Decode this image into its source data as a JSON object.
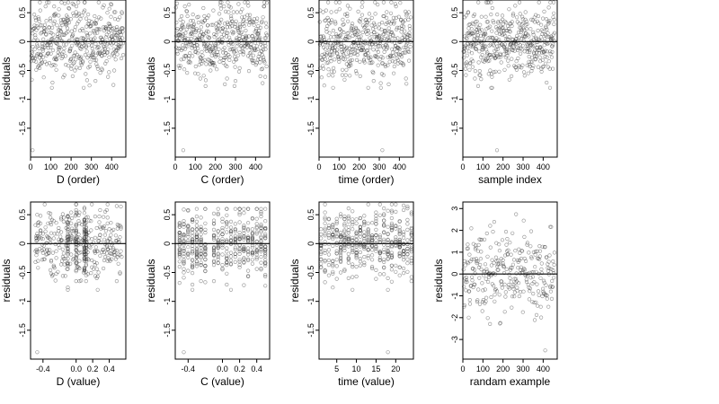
{
  "chart_data": [
    {
      "type": "scatter",
      "xlabel": "D (order)",
      "ylabel": "residuals",
      "xlim": [
        0,
        470
      ],
      "ylim": [
        -2.0,
        0.72
      ],
      "xticks": [
        0,
        100,
        200,
        300,
        400
      ],
      "xtick_labels": [
        "0",
        "100",
        "200",
        "300",
        "400"
      ],
      "yticks": [
        0.5,
        0,
        -0.5,
        -1.0,
        -1.5
      ],
      "ytick_labels": [
        "0.5",
        "0",
        "-0.5",
        "-1",
        "-1.5"
      ],
      "hline": 0,
      "marker": "open-circle",
      "sampling": {
        "kind": "index",
        "n": 460,
        "seed": 11,
        "sd": 0.3,
        "lo": -0.8,
        "hi": 0.68,
        "outlier": [
          10,
          -1.88
        ]
      },
      "x": [],
      "y": []
    },
    {
      "type": "scatter",
      "xlabel": "C (order)",
      "ylabel": "residuals",
      "xlim": [
        0,
        470
      ],
      "ylim": [
        -2.0,
        0.72
      ],
      "xticks": [
        0,
        100,
        200,
        300,
        400
      ],
      "xtick_labels": [
        "0",
        "100",
        "200",
        "300",
        "400"
      ],
      "yticks": [
        0.5,
        0,
        -0.5,
        -1.0,
        -1.5
      ],
      "ytick_labels": [
        "0.5",
        "0",
        "-0.5",
        "-1",
        "-1.5"
      ],
      "hline": 0,
      "marker": "open-circle",
      "sampling": {
        "kind": "index",
        "n": 460,
        "seed": 23,
        "sd": 0.3,
        "lo": -0.8,
        "hi": 0.68,
        "outlier": [
          40,
          -1.88
        ]
      },
      "x": [],
      "y": []
    },
    {
      "type": "scatter",
      "xlabel": "time (order)",
      "ylabel": "residuals",
      "xlim": [
        0,
        470
      ],
      "ylim": [
        -2.0,
        0.72
      ],
      "xticks": [
        0,
        100,
        200,
        300,
        400
      ],
      "xtick_labels": [
        "0",
        "100",
        "200",
        "300",
        "400"
      ],
      "yticks": [
        0.5,
        0,
        -0.5,
        -1.0,
        -1.5
      ],
      "ytick_labels": [
        "0.5",
        "0",
        "-0.5",
        "-1",
        "-1.5"
      ],
      "hline": 0,
      "marker": "open-circle",
      "sampling": {
        "kind": "index",
        "n": 460,
        "seed": 37,
        "sd": 0.3,
        "lo": -0.8,
        "hi": 0.68,
        "outlier": [
          315,
          -1.88
        ]
      },
      "x": [],
      "y": []
    },
    {
      "type": "scatter",
      "xlabel": "sample index",
      "ylabel": "residuals",
      "xlim": [
        0,
        470
      ],
      "ylim": [
        -2.0,
        0.72
      ],
      "xticks": [
        0,
        100,
        200,
        300,
        400
      ],
      "xtick_labels": [
        "0",
        "100",
        "200",
        "300",
        "400"
      ],
      "yticks": [
        0.5,
        0,
        -0.5,
        -1.0,
        -1.5
      ],
      "ytick_labels": [
        "0.5",
        "0",
        "-0.5",
        "-1",
        "-1.5"
      ],
      "hline": 0,
      "marker": "open-circle",
      "sampling": {
        "kind": "index",
        "n": 460,
        "seed": 41,
        "sd": 0.3,
        "lo": -0.8,
        "hi": 0.68,
        "outlier": [
          170,
          -1.88
        ]
      },
      "x": [],
      "y": []
    },
    {
      "type": "scatter",
      "xlabel": "D (value)",
      "ylabel": "residuals",
      "xlim": [
        -0.55,
        0.6
      ],
      "ylim": [
        -2.0,
        0.72
      ],
      "xticks": [
        -0.4,
        0.0,
        0.2,
        0.4
      ],
      "xtick_labels": [
        "-0.4",
        "0.0",
        "0.2",
        "0.4"
      ],
      "yticks": [
        0.5,
        0,
        -0.5,
        -1.0,
        -1.5
      ],
      "ytick_labels": [
        "0.5",
        "0",
        "-0.5",
        "-1",
        "-1.5"
      ],
      "hline": 0,
      "marker": "open-circle",
      "sampling": {
        "kind": "continuous",
        "n": 460,
        "seed": 53,
        "xmin": -0.5,
        "xmax": 0.55,
        "sd": 0.3,
        "lo": -0.8,
        "hi": 0.68,
        "stripes": [
          0.1,
          0.12,
          -0.1,
          0.0
        ],
        "outlier": [
          -0.47,
          -1.88
        ]
      },
      "x": [],
      "y": []
    },
    {
      "type": "scatter",
      "xlabel": "C (value)",
      "ylabel": "residuals",
      "xlim": [
        -0.55,
        0.55
      ],
      "ylim": [
        -2.0,
        0.72
      ],
      "xticks": [
        -0.4,
        0.0,
        0.2,
        0.4
      ],
      "xtick_labels": [
        "-0.4",
        "0.0",
        "0.2",
        "0.4"
      ],
      "yticks": [
        0.5,
        0,
        -0.5,
        -1.0,
        -1.5
      ],
      "ytick_labels": [
        "0.5",
        "0",
        "-0.5",
        "-1",
        "-1.5"
      ],
      "hline": 0,
      "marker": "open-circle",
      "sampling": {
        "kind": "discrete",
        "n": 460,
        "seed": 67,
        "levels": [
          -0.5,
          -0.45,
          -0.4,
          -0.35,
          -0.3,
          -0.25,
          -0.2,
          -0.1,
          -0.05,
          0.0,
          0.05,
          0.1,
          0.15,
          0.2,
          0.25,
          0.3,
          0.35,
          0.4,
          0.45,
          0.5
        ],
        "sd": 0.3,
        "lo": -0.8,
        "hi": 0.6,
        "outlier": [
          -0.45,
          -1.88
        ]
      },
      "x": [],
      "y": []
    },
    {
      "type": "scatter",
      "xlabel": "time (value)",
      "ylabel": "residuals",
      "xlim": [
        0.5,
        24.5
      ],
      "ylim": [
        -2.0,
        0.72
      ],
      "xticks": [
        5,
        10,
        15,
        20
      ],
      "xtick_labels": [
        "5",
        "10",
        "15",
        "20"
      ],
      "yticks": [
        0.5,
        0,
        -0.5,
        -1.0,
        -1.5
      ],
      "ytick_labels": [
        "0.5",
        "0",
        "-0.5",
        "-1",
        "-1.5"
      ],
      "hline": 0,
      "marker": "open-circle",
      "sampling": {
        "kind": "discrete",
        "n": 460,
        "seed": 79,
        "levels": [
          1,
          2,
          3,
          4,
          5,
          6,
          7,
          8,
          9,
          10,
          11,
          12,
          13,
          14,
          15,
          16,
          17,
          18,
          19,
          20,
          21,
          22,
          23,
          24
        ],
        "sd": 0.3,
        "lo": -0.8,
        "hi": 0.68,
        "outlier": [
          18,
          -1.88
        ]
      },
      "x": [],
      "y": []
    },
    {
      "type": "scatter",
      "xlabel": "randam example",
      "ylabel": "residuals",
      "xlim": [
        0,
        470
      ],
      "ylim": [
        -3.9,
        3.3
      ],
      "xticks": [
        0,
        100,
        200,
        300,
        400
      ],
      "xtick_labels": [
        "0",
        "100",
        "200",
        "300",
        "400"
      ],
      "yticks": [
        3,
        2,
        1,
        0,
        -1,
        -2,
        -3
      ],
      "ytick_labels": [
        "3",
        "2",
        "1",
        "0",
        "-1",
        "-2",
        "-3"
      ],
      "hline": 0,
      "marker": "open-circle",
      "sampling": {
        "kind": "index",
        "n": 300,
        "seed": 97,
        "sd": 1.0,
        "lo": -3.0,
        "hi": 3.05,
        "outlier": [
          410,
          -3.5
        ]
      },
      "x": [],
      "y": []
    }
  ]
}
